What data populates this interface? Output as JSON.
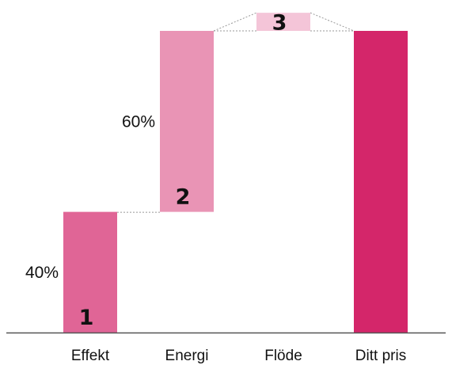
{
  "chart_data": {
    "type": "bar",
    "variant": "waterfall",
    "title": "",
    "xlabel": "",
    "ylabel": "",
    "ylim": [
      0,
      100
    ],
    "categories": [
      "Effekt",
      "Energi",
      "Flöde",
      "Ditt pris"
    ],
    "bars": [
      {
        "category": "Effekt",
        "start": 0,
        "end": 40,
        "step_label": "1",
        "pct_label": "40%",
        "color": "#e06596"
      },
      {
        "category": "Energi",
        "start": 40,
        "end": 100,
        "step_label": "2",
        "pct_label": "60%",
        "color": "#e994b5"
      },
      {
        "category": "Flöde",
        "start": 100,
        "end": 106,
        "step_label": "3",
        "pct_label": "",
        "color": "#f4c5d8"
      },
      {
        "category": "Ditt pris",
        "start": 0,
        "end": 100,
        "step_label": "",
        "pct_label": "",
        "color": "#d4266a"
      }
    ],
    "colors": {
      "baseline": "#555555",
      "connector": "#999999",
      "text": "#111111"
    }
  }
}
